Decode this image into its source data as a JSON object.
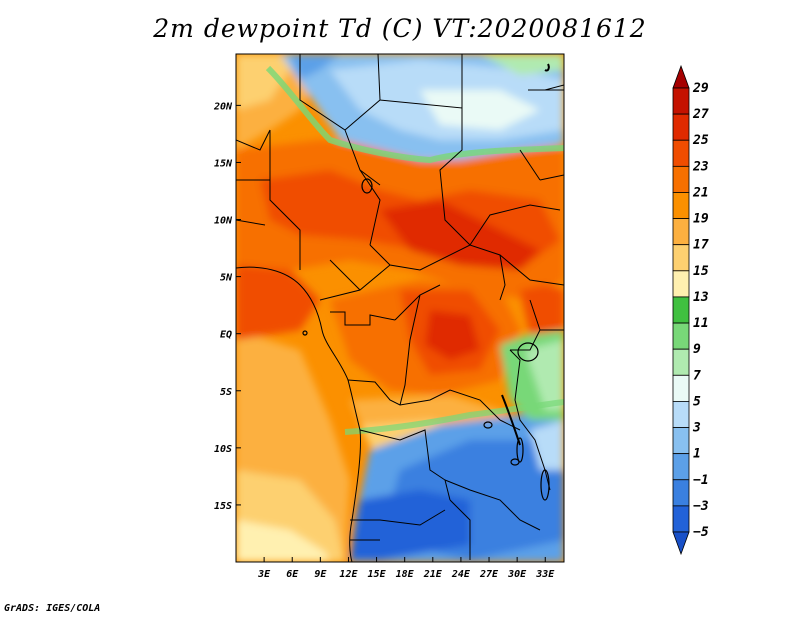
{
  "title": "2m dewpoint Td (C) VT:2020081612",
  "credit": "GrADS: IGES/COLA",
  "map": {
    "lon_range": [
      0,
      35
    ],
    "lat_range": [
      -20,
      24.5
    ],
    "lon_ticks": [
      {
        "value": 3,
        "label": "3E"
      },
      {
        "value": 6,
        "label": "6E"
      },
      {
        "value": 9,
        "label": "9E"
      },
      {
        "value": 12,
        "label": "12E"
      },
      {
        "value": 15,
        "label": "15E"
      },
      {
        "value": 18,
        "label": "18E"
      },
      {
        "value": 21,
        "label": "21E"
      },
      {
        "value": 24,
        "label": "24E"
      },
      {
        "value": 27,
        "label": "27E"
      },
      {
        "value": 30,
        "label": "30E"
      },
      {
        "value": 33,
        "label": "33E"
      }
    ],
    "lat_ticks": [
      {
        "value": 20,
        "label": "20N"
      },
      {
        "value": 15,
        "label": "15N"
      },
      {
        "value": 10,
        "label": "10N"
      },
      {
        "value": 5,
        "label": "5N"
      },
      {
        "value": 0,
        "label": "EQ"
      },
      {
        "value": -5,
        "label": "5S"
      },
      {
        "value": -10,
        "label": "10S"
      },
      {
        "value": -15,
        "label": "15S"
      }
    ]
  },
  "colorbar": {
    "labels": [
      "29",
      "27",
      "25",
      "23",
      "21",
      "19",
      "17",
      "15",
      "13",
      "11",
      "9",
      "7",
      "5",
      "3",
      "1",
      "−1",
      "−3",
      "−5"
    ],
    "colors": [
      "#a50000",
      "#c41200",
      "#e02a00",
      "#f04d00",
      "#f77000",
      "#fb9000",
      "#fcb040",
      "#fdd070",
      "#fff0b0",
      "#40c040",
      "#78d878",
      "#b0eab0",
      "#eafaf6",
      "#b8dcf8",
      "#88c0f0",
      "#5ca0e8",
      "#3a80e0",
      "#2262d8",
      "#1850c8"
    ]
  }
}
